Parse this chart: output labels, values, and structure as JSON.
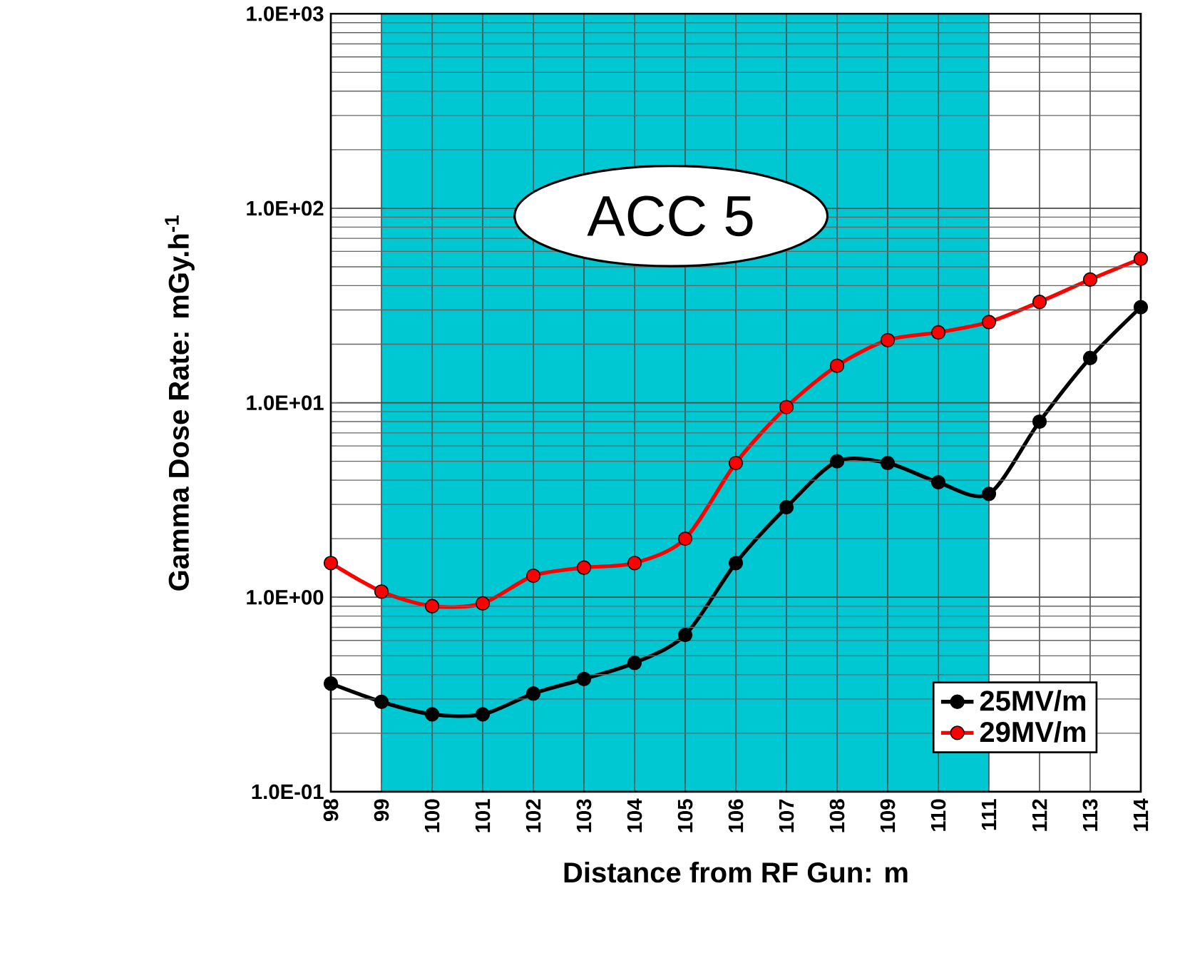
{
  "chart_data": {
    "type": "line",
    "xlabel": "Distance from RF Gun: m",
    "ylabel": "Gamma Dose Rate: mGy.h$^{-1}$",
    "x": [
      98,
      99,
      100,
      101,
      102,
      103,
      104,
      105,
      106,
      107,
      108,
      109,
      110,
      111,
      112,
      113,
      114
    ],
    "series": [
      {
        "name": "25MV/m",
        "color": "#000000",
        "values": [
          0.36,
          0.29,
          0.25,
          0.25,
          0.32,
          0.38,
          0.46,
          0.64,
          1.5,
          2.9,
          5.0,
          4.9,
          3.9,
          3.4,
          8,
          17,
          31
        ]
      },
      {
        "name": "29MV/m",
        "color": "#ff0000",
        "values": [
          1.5,
          1.07,
          0.9,
          0.93,
          1.29,
          1.42,
          1.5,
          2.0,
          4.9,
          9.5,
          15.5,
          21,
          23,
          26,
          33,
          43,
          55
        ]
      }
    ],
    "xlim": [
      98,
      114
    ],
    "ylim": [
      0.1,
      1000
    ],
    "log": "y",
    "xticks": [
      98,
      99,
      100,
      101,
      102,
      103,
      104,
      105,
      106,
      107,
      108,
      109,
      110,
      111,
      112,
      113,
      114
    ],
    "yticks": [
      {
        "value": 0.1,
        "label": "1.0E-01"
      },
      {
        "value": 1,
        "label": "1.0E+00"
      },
      {
        "value": 10,
        "label": "1.0E+01"
      },
      {
        "value": 100,
        "label": "1.0E+02"
      },
      {
        "value": 1000,
        "label": "1.0E+03"
      }
    ],
    "bands": [
      {
        "axis": "x",
        "from": 99,
        "to": 111,
        "color": "#00c8d2"
      }
    ],
    "annotations": [
      "ACC 5"
    ],
    "grid": true,
    "legend": "bottom right",
    "marker": "circle",
    "line_style": "solid"
  }
}
